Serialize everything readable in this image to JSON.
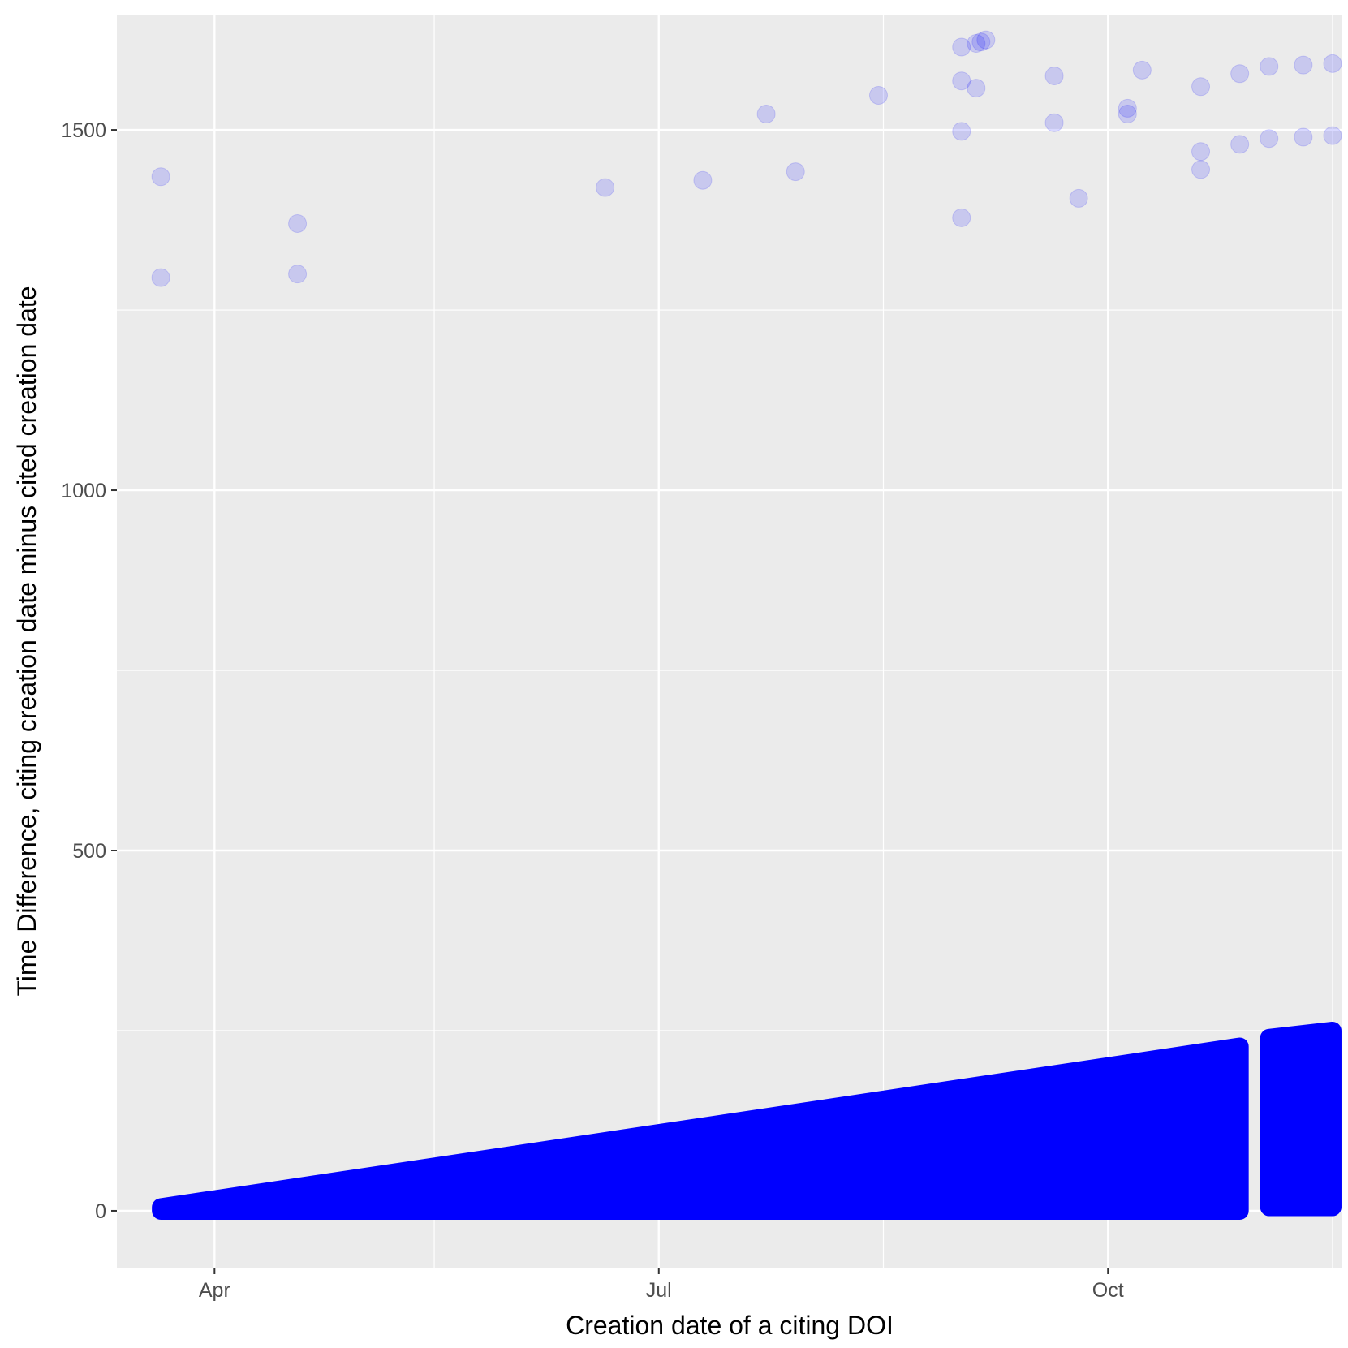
{
  "chart_data": {
    "type": "scatter",
    "title": "",
    "xlabel": "Creation date of a citing DOI",
    "ylabel": "Time Difference, citing creation date minus cited creation date",
    "x_axis": {
      "kind": "date",
      "lim": [
        "2018-03-12",
        "2018-11-18"
      ],
      "ticks": [
        {
          "value": "2018-04-01",
          "label": "Apr"
        },
        {
          "value": "2018-07-01",
          "label": "Jul"
        },
        {
          "value": "2018-10-01",
          "label": "Oct"
        }
      ],
      "minor_ticks": [
        "2018-05-16",
        "2018-08-16",
        "2018-11-16"
      ]
    },
    "y_axis": {
      "lim": [
        -80,
        1660
      ],
      "ticks": [
        0,
        500,
        1000,
        1500
      ],
      "tick_labels": [
        "0",
        "500",
        "1000",
        "1500"
      ],
      "minor_ticks": [
        250,
        750,
        1250
      ]
    },
    "grid": true,
    "background": "#ebebeb",
    "gridline_color": "#ffffff",
    "point_color": "#0000ff",
    "point_alpha": 0.15,
    "approximate_data": true,
    "bands": [
      {
        "x_start": "2018-03-21",
        "x_end": "2018-10-28",
        "y_min_start": 0,
        "y_min_end": 0,
        "y_max_start": 5,
        "y_max_end": 228
      },
      {
        "x_start": "2018-11-03",
        "x_end": "2018-11-16",
        "y_min_start": 5,
        "y_min_end": 5,
        "y_max_start": 240,
        "y_max_end": 250
      }
    ],
    "series": [
      {
        "x": [
          "2018-06-20",
          "2018-07-10",
          "2018-07-29"
        ],
        "y": [
          1420,
          1430,
          1442
        ]
      },
      {
        "x": [
          "2018-07-23",
          "2018-08-15",
          "2018-09-01"
        ],
        "y": [
          1522,
          1548,
          1568
        ]
      },
      {
        "x": [
          "2018-09-04",
          "2018-09-20",
          "2018-10-08"
        ],
        "y": [
          1558,
          1575,
          1583
        ]
      },
      {
        "x": [
          "2018-09-01",
          "2018-09-20",
          "2018-10-05"
        ],
        "y": [
          1498,
          1510,
          1522
        ]
      },
      {
        "x": [
          "2018-10-05",
          "2018-10-20",
          "2018-10-28"
        ],
        "y": [
          1530,
          1560,
          1578
        ]
      },
      {
        "x": [
          "2018-09-01",
          "2018-09-25",
          "2018-10-20"
        ],
        "y": [
          1378,
          1405,
          1445
        ]
      },
      {
        "x": [
          "2018-10-20",
          "2018-10-28"
        ],
        "y": [
          1470,
          1480
        ]
      },
      {
        "x": [
          "2018-11-03",
          "2018-11-10",
          "2018-11-16"
        ],
        "y": [
          1588,
          1590,
          1592
        ]
      },
      {
        "x": [
          "2018-11-03",
          "2018-11-10",
          "2018-11-16"
        ],
        "y": [
          1488,
          1490,
          1492
        ]
      },
      {
        "x": [
          "2018-03-21",
          "2018-03-21",
          "2018-04-18",
          "2018-04-18"
        ],
        "y": [
          1435,
          1295,
          1370,
          1300
        ]
      },
      {
        "x": [
          "2018-09-01",
          "2018-09-04",
          "2018-09-05",
          "2018-09-06"
        ],
        "y": [
          1615,
          1620,
          1622,
          1625
        ]
      }
    ]
  }
}
